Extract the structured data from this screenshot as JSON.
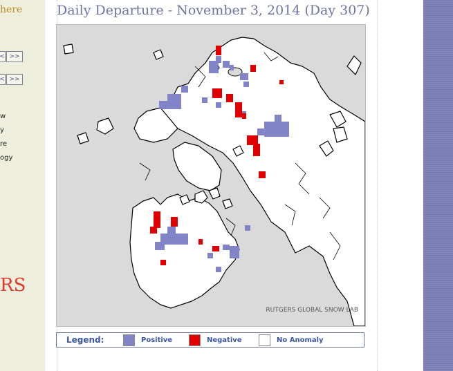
{
  "page_title": "Daily Departure - November 3, 2014 (Day 307)",
  "sidebar": {
    "here_link": "here",
    "nav_buttons": [
      {
        "id": "prev-1",
        "label": "<"
      },
      {
        "id": "next-1",
        "label": ">>"
      },
      {
        "id": "prev-2",
        "label": "<"
      },
      {
        "id": "next-2",
        "label": ">>"
      }
    ],
    "links": [
      "w",
      "y",
      "re",
      "ogy"
    ],
    "logo_text": "RS"
  },
  "map": {
    "credit": "RUTGERS GLOBAL SNOW LAB",
    "colors": {
      "background": "#dadada",
      "land": "#ffffff",
      "positive": "#8184c6",
      "negative": "#e00000",
      "outline": "#000000"
    }
  },
  "legend": {
    "label": "Legend:",
    "items": [
      {
        "name": "Positive",
        "color": "#8184c6"
      },
      {
        "name": "Negative",
        "color": "#e00000"
      },
      {
        "name": "No Anomaly",
        "color": "#ffffff"
      }
    ]
  }
}
